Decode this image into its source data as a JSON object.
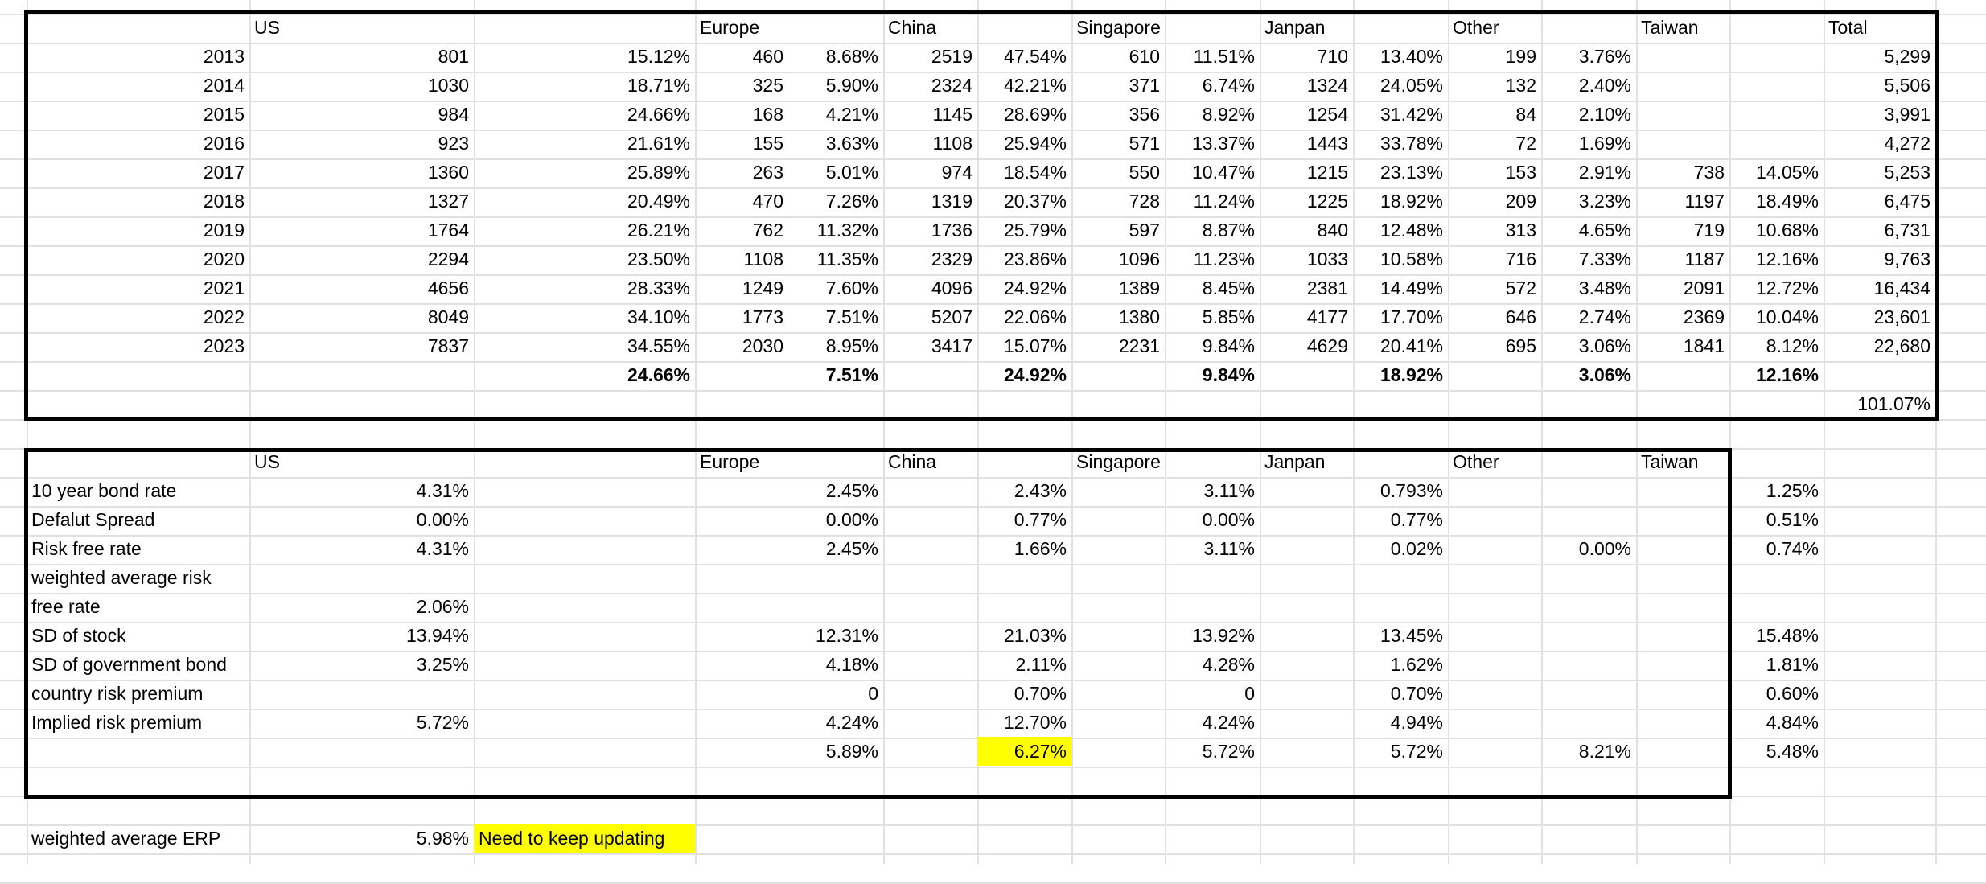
{
  "table1": {
    "headers": [
      "US",
      "Europe",
      "China",
      "Singapore",
      "Janpan",
      "Other",
      "Taiwan",
      "Total"
    ],
    "rows": [
      {
        "year": "2013",
        "cells": [
          "801",
          "15.12%",
          "460",
          "8.68%",
          "2519",
          "47.54%",
          "610",
          "11.51%",
          "710",
          "13.40%",
          "199",
          "3.76%",
          "",
          "",
          "5,299"
        ]
      },
      {
        "year": "2014",
        "cells": [
          "1030",
          "18.71%",
          "325",
          "5.90%",
          "2324",
          "42.21%",
          "371",
          "6.74%",
          "1324",
          "24.05%",
          "132",
          "2.40%",
          "",
          "",
          "5,506"
        ]
      },
      {
        "year": "2015",
        "cells": [
          "984",
          "24.66%",
          "168",
          "4.21%",
          "1145",
          "28.69%",
          "356",
          "8.92%",
          "1254",
          "31.42%",
          "84",
          "2.10%",
          "",
          "",
          "3,991"
        ]
      },
      {
        "year": "2016",
        "cells": [
          "923",
          "21.61%",
          "155",
          "3.63%",
          "1108",
          "25.94%",
          "571",
          "13.37%",
          "1443",
          "33.78%",
          "72",
          "1.69%",
          "",
          "",
          "4,272"
        ]
      },
      {
        "year": "2017",
        "cells": [
          "1360",
          "25.89%",
          "263",
          "5.01%",
          "974",
          "18.54%",
          "550",
          "10.47%",
          "1215",
          "23.13%",
          "153",
          "2.91%",
          "738",
          "14.05%",
          "5,253"
        ]
      },
      {
        "year": "2018",
        "cells": [
          "1327",
          "20.49%",
          "470",
          "7.26%",
          "1319",
          "20.37%",
          "728",
          "11.24%",
          "1225",
          "18.92%",
          "209",
          "3.23%",
          "1197",
          "18.49%",
          "6,475"
        ]
      },
      {
        "year": "2019",
        "cells": [
          "1764",
          "26.21%",
          "762",
          "11.32%",
          "1736",
          "25.79%",
          "597",
          "8.87%",
          "840",
          "12.48%",
          "313",
          "4.65%",
          "719",
          "10.68%",
          "6,731"
        ]
      },
      {
        "year": "2020",
        "cells": [
          "2294",
          "23.50%",
          "1108",
          "11.35%",
          "2329",
          "23.86%",
          "1096",
          "11.23%",
          "1033",
          "10.58%",
          "716",
          "7.33%",
          "1187",
          "12.16%",
          "9,763"
        ]
      },
      {
        "year": "2021",
        "cells": [
          "4656",
          "28.33%",
          "1249",
          "7.60%",
          "4096",
          "24.92%",
          "1389",
          "8.45%",
          "2381",
          "14.49%",
          "572",
          "3.48%",
          "2091",
          "12.72%",
          "16,434"
        ]
      },
      {
        "year": "2022",
        "cells": [
          "8049",
          "34.10%",
          "1773",
          "7.51%",
          "5207",
          "22.06%",
          "1380",
          "5.85%",
          "4177",
          "17.70%",
          "646",
          "2.74%",
          "2369",
          "10.04%",
          "23,601"
        ]
      },
      {
        "year": "2023",
        "cells": [
          "7837",
          "34.55%",
          "2030",
          "8.95%",
          "3417",
          "15.07%",
          "2231",
          "9.84%",
          "4629",
          "20.41%",
          "695",
          "3.06%",
          "1841",
          "8.12%",
          "22,680"
        ]
      }
    ],
    "medians": [
      "24.66%",
      "7.51%",
      "24.92%",
      "9.84%",
      "18.92%",
      "3.06%",
      "12.16%"
    ],
    "total_sum": "101.07%"
  },
  "table2": {
    "headers": [
      "US",
      "Europe",
      "China",
      "Singapore",
      "Janpan",
      "Other",
      "Taiwan"
    ],
    "rows": [
      {
        "label": "10 year bond rate",
        "cells": [
          "4.31%",
          "2.45%",
          "2.43%",
          "3.11%",
          "0.793%",
          "",
          "1.25%"
        ]
      },
      {
        "label": "Defalut Spread",
        "cells": [
          "0.00%",
          "0.00%",
          "0.77%",
          "0.00%",
          "0.77%",
          "",
          "0.51%"
        ]
      },
      {
        "label": "Risk free rate",
        "cells": [
          "4.31%",
          "2.45%",
          "1.66%",
          "3.11%",
          "0.02%",
          "0.00%",
          "0.74%"
        ]
      },
      {
        "label": "weighted average risk free rate",
        "cells": [
          "2.06%",
          "",
          "",
          "",
          "",
          "",
          ""
        ]
      },
      {
        "label": "SD of stock",
        "cells": [
          "13.94%",
          "12.31%",
          "21.03%",
          "13.92%",
          "13.45%",
          "",
          "15.48%"
        ]
      },
      {
        "label": "SD of government bond",
        "cells": [
          "3.25%",
          "4.18%",
          "2.11%",
          "4.28%",
          "1.62%",
          "",
          "1.81%"
        ]
      },
      {
        "label": "country risk premium",
        "cells": [
          "",
          "0",
          "0.70%",
          "0",
          "0.70%",
          "",
          "0.60%"
        ]
      },
      {
        "label": "Implied risk premium",
        "cells": [
          "5.72%",
          "4.24%",
          "12.70%",
          "4.24%",
          "4.94%",
          "",
          "4.84%"
        ]
      },
      {
        "label": "",
        "cells": [
          "",
          "5.89%",
          "6.27%",
          "5.72%",
          "5.72%",
          "8.21%",
          "5.48%"
        ]
      }
    ]
  },
  "footer": {
    "label": "weighted average ERP",
    "value": "5.98%",
    "note": "Need to keep updating"
  },
  "colors": {
    "highlight": "#ffff00",
    "gridline": "#e1e1e1",
    "border": "#000000"
  }
}
